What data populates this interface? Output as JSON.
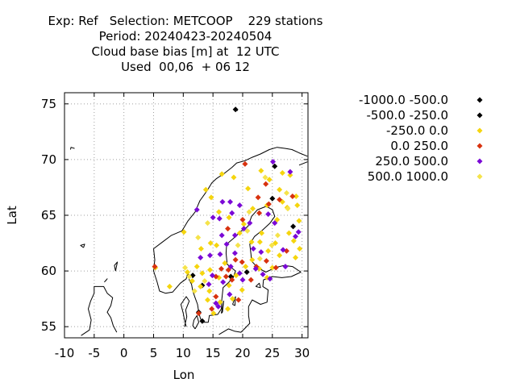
{
  "title_lines": [
    "Exp: Ref   Selection: METCOOP    229 stations",
    "Period: 20240423-20240504",
    "Cloud base bias [m] at  12 UTC",
    "Used  00,06  + 06 12"
  ],
  "axes": {
    "xlabel": "Lon",
    "ylabel": "Lat",
    "xticks": [
      "-10",
      "-5",
      "0",
      "5",
      "10",
      "15",
      "20",
      "25",
      "30"
    ],
    "yticks": [
      "55",
      "60",
      "65",
      "70",
      "75"
    ]
  },
  "chart_data": {
    "type": "scatter",
    "xlabel": "Lon",
    "ylabel": "Lat",
    "xlim": [
      -10,
      31
    ],
    "ylim": [
      54,
      76
    ],
    "grid": true,
    "legend_placement": "right",
    "series": [
      {
        "name": "-1000.0 -500.0",
        "color": "#000000",
        "points": [
          [
            25.4,
            69.4
          ],
          [
            28.5,
            64.0
          ],
          [
            11.6,
            59.6
          ],
          [
            13.2,
            58.7
          ],
          [
            12.6,
            56.3
          ],
          [
            20.7,
            59.9
          ]
        ]
      },
      {
        "name": "-500.0 -250.0",
        "color": "#000000",
        "points": [
          [
            18.8,
            74.5
          ],
          [
            25.0,
            66.5
          ],
          [
            18.0,
            59.5
          ],
          [
            13.2,
            55.5
          ]
        ]
      },
      {
        "name": "-250.0 0.0",
        "color": "#f5d50e",
        "points": [
          [
            23.1,
            69.0
          ],
          [
            24.5,
            68.2
          ],
          [
            26.7,
            68.8
          ],
          [
            28.0,
            68.6
          ],
          [
            26.7,
            66.2
          ],
          [
            27.5,
            65.7
          ],
          [
            29.2,
            65.9
          ],
          [
            29.5,
            64.5
          ],
          [
            27.8,
            63.4
          ],
          [
            28.6,
            62.7
          ],
          [
            29.6,
            62.0
          ],
          [
            28.9,
            61.2
          ],
          [
            26.2,
            61.4
          ],
          [
            24.3,
            61.8
          ],
          [
            22.9,
            62.6
          ],
          [
            21.5,
            62.6
          ],
          [
            19.5,
            63.4
          ],
          [
            17.7,
            64.8
          ],
          [
            16.0,
            65.3
          ],
          [
            14.7,
            66.6
          ],
          [
            13.8,
            67.3
          ],
          [
            15.6,
            62.3
          ],
          [
            14.6,
            62.5
          ],
          [
            13.0,
            62.0
          ],
          [
            12.3,
            60.4
          ],
          [
            11.5,
            59.1
          ],
          [
            13.2,
            59.8
          ],
          [
            14.5,
            60.1
          ],
          [
            16.0,
            59.4
          ],
          [
            17.7,
            58.7
          ],
          [
            18.3,
            57.5
          ],
          [
            16.2,
            57.2
          ],
          [
            14.1,
            57.4
          ],
          [
            15.1,
            56.2
          ],
          [
            17.5,
            56.6
          ],
          [
            20.5,
            60.4
          ],
          [
            21.6,
            61.0
          ],
          [
            22.8,
            60.2
          ],
          [
            25.0,
            60.3
          ],
          [
            24.1,
            59.4
          ],
          [
            25.5,
            62.5
          ],
          [
            23.2,
            63.4
          ],
          [
            20.2,
            64.2
          ],
          [
            21.7,
            65.6
          ],
          [
            24.1,
            65.9
          ],
          [
            20.9,
            67.4
          ],
          [
            18.5,
            68.4
          ],
          [
            16.5,
            68.7
          ],
          [
            10.1,
            63.5
          ],
          [
            5.3,
            60.3
          ],
          [
            7.7,
            58.6
          ],
          [
            10.7,
            59.9
          ],
          [
            14.4,
            58.2
          ],
          [
            12.9,
            58.6
          ],
          [
            19.9,
            58.3
          ],
          [
            18.9,
            59.6
          ],
          [
            17.0,
            60.7
          ],
          [
            25.8,
            64.6
          ],
          [
            29.0,
            66.7
          ],
          [
            26.2,
            67.3
          ]
        ]
      },
      {
        "name": "0.0 250.0",
        "color": "#d8320f",
        "points": [
          [
            20.4,
            69.6
          ],
          [
            23.9,
            67.8
          ],
          [
            22.6,
            66.6
          ],
          [
            26.2,
            66.4
          ],
          [
            28.4,
            66.7
          ],
          [
            24.4,
            66.0
          ],
          [
            22.8,
            65.2
          ],
          [
            20.0,
            64.6
          ],
          [
            17.5,
            63.8
          ],
          [
            18.8,
            61.0
          ],
          [
            19.9,
            60.8
          ],
          [
            16.4,
            60.2
          ],
          [
            17.2,
            59.5
          ],
          [
            18.2,
            59.2
          ],
          [
            17.6,
            60.1
          ],
          [
            12.6,
            56.2
          ],
          [
            14.8,
            56.6
          ],
          [
            15.5,
            57.7
          ],
          [
            19.3,
            57.4
          ],
          [
            21.4,
            59.2
          ],
          [
            24.0,
            60.9
          ],
          [
            27.4,
            61.8
          ],
          [
            25.6,
            60.3
          ],
          [
            5.2,
            60.4
          ],
          [
            15.5,
            59.5
          ],
          [
            22.3,
            60.4
          ]
        ]
      },
      {
        "name": "250.0 500.0",
        "color": "#7b09d6",
        "points": [
          [
            28.0,
            68.9
          ],
          [
            25.1,
            69.8
          ],
          [
            12.3,
            65.5
          ],
          [
            15.0,
            64.8
          ],
          [
            16.1,
            64.7
          ],
          [
            16.5,
            63.2
          ],
          [
            18.7,
            63.2
          ],
          [
            20.2,
            63.8
          ],
          [
            21.2,
            64.3
          ],
          [
            24.3,
            65.1
          ],
          [
            25.4,
            64.3
          ],
          [
            21.8,
            62.0
          ],
          [
            23.1,
            61.7
          ],
          [
            29.4,
            63.5
          ],
          [
            27.2,
            60.4
          ],
          [
            26.8,
            61.9
          ],
          [
            14.5,
            61.4
          ],
          [
            16.2,
            61.5
          ],
          [
            17.3,
            62.4
          ],
          [
            18.7,
            61.6
          ],
          [
            12.9,
            61.2
          ],
          [
            14.9,
            59.6
          ],
          [
            16.7,
            59.0
          ],
          [
            19.5,
            59.8
          ],
          [
            20.0,
            59.2
          ],
          [
            18.0,
            60.4
          ],
          [
            17.9,
            66.2
          ],
          [
            16.6,
            66.2
          ],
          [
            18.2,
            65.2
          ],
          [
            19.5,
            65.9
          ],
          [
            17.8,
            57.9
          ],
          [
            15.5,
            57.1
          ],
          [
            15.9,
            56.8
          ],
          [
            22.2,
            60.2
          ],
          [
            23.4,
            59.7
          ],
          [
            24.6,
            59.3
          ],
          [
            14.3,
            58.8
          ],
          [
            28.9,
            63.1
          ]
        ]
      },
      {
        "name": "500.0 1000.0",
        "color": "#f5e34a",
        "points": [
          [
            23.8,
            68.4
          ],
          [
            27.4,
            67.0
          ],
          [
            27.6,
            65.6
          ],
          [
            21.1,
            65.3
          ],
          [
            25.9,
            63.2
          ],
          [
            24.9,
            62.3
          ],
          [
            22.9,
            61.1
          ],
          [
            13.6,
            59.1
          ],
          [
            11.9,
            58.2
          ],
          [
            19.2,
            62.3
          ],
          [
            20.8,
            63.6
          ],
          [
            14.1,
            64.3
          ],
          [
            12.5,
            63.0
          ],
          [
            10.3,
            60.3
          ],
          [
            11.0,
            59.5
          ]
        ]
      }
    ]
  },
  "legend": [
    {
      "label": "-1000.0 -500.0",
      "color": "#000000"
    },
    {
      "label": "-500.0 -250.0",
      "color": "#000000"
    },
    {
      "label": "-250.0 0.0",
      "color": "#f5d50e"
    },
    {
      "label": "0.0 250.0",
      "color": "#d8320f"
    },
    {
      "label": "250.0 500.0",
      "color": "#7b09d6"
    },
    {
      "label": "500.0 1000.0",
      "color": "#f5e34a"
    }
  ]
}
